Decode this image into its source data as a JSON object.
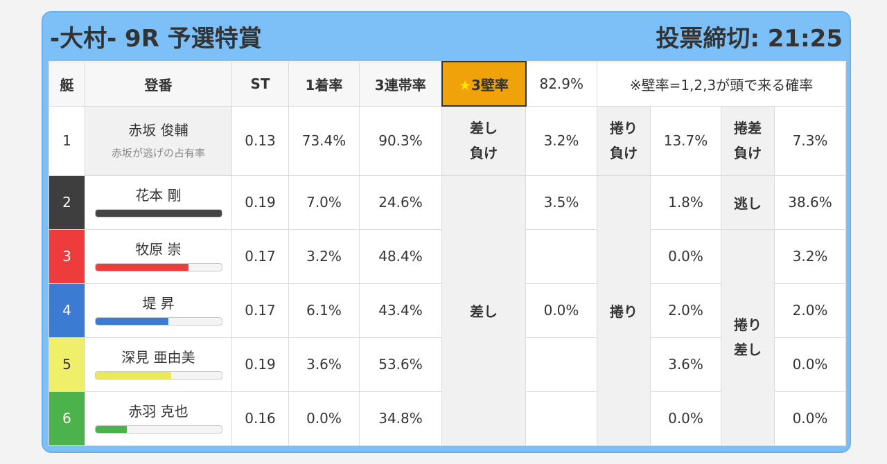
{
  "header": {
    "title": "-大村- 9R 予選特賞",
    "deadline": "投票締切: 21:25"
  },
  "columns": {
    "boat": "艇",
    "name": "登番",
    "st": "ST",
    "first_rate": "1着率",
    "top3_rate": "3連帯率",
    "star": "★",
    "kabe_label": "3壁率",
    "kabe_value": "82.9%",
    "note": "※壁率=1,2,3が頭で来る確率"
  },
  "colors": {
    "boat1": "#ffffff",
    "boat2": "#3e3e3e",
    "boat3": "#ee3b3b",
    "boat4": "#3b7bd1",
    "boat5": "#f0ef6a",
    "boat6": "#4cb24c",
    "kabe_highlight": "#f0a20a"
  },
  "rows": [
    {
      "boat": "1",
      "name": "赤坂 俊輔",
      "sub": "赤坂が逃げの占有率",
      "st": "0.13",
      "first": "73.4%",
      "top3": "90.3%"
    },
    {
      "boat": "2",
      "name": "花本 剛",
      "st": "0.19",
      "first": "7.0%",
      "top3": "24.6%",
      "bar": 1.0,
      "bar_color": "#444444"
    },
    {
      "boat": "3",
      "name": "牧原 崇",
      "st": "0.17",
      "first": "3.2%",
      "top3": "48.4%",
      "bar": 0.74,
      "bar_color": "#ee3b3b"
    },
    {
      "boat": "4",
      "name": "堤 昇",
      "st": "0.17",
      "first": "6.1%",
      "top3": "43.4%",
      "bar": 0.58,
      "bar_color": "#3b7bd1"
    },
    {
      "boat": "5",
      "name": "深見 亜由美",
      "st": "0.19",
      "first": "3.6%",
      "top3": "53.6%",
      "bar": 0.6,
      "bar_color": "#eaea55"
    },
    {
      "boat": "6",
      "name": "赤羽 克也",
      "st": "0.16",
      "first": "0.0%",
      "top3": "34.8%",
      "bar": 0.25,
      "bar_color": "#4cb24c"
    }
  ],
  "boat1_outcomes": {
    "sashi_make_l1": "差し",
    "sashi_make_l2": "負け",
    "sashi_make_val": "3.2%",
    "makuri_make_l1": "捲り",
    "makuri_make_l2": "負け",
    "makuri_make_val": "13.7%",
    "makurizashi_make_l1": "捲差",
    "makurizashi_make_l2": "負け",
    "makurizashi_make_val": "7.3%"
  },
  "sashi": {
    "label": "差し",
    "values": [
      "3.5%",
      "",
      "0.0%",
      "",
      ""
    ]
  },
  "makuri": {
    "label": "捲り",
    "values": [
      "1.8%",
      "0.0%",
      "2.0%",
      "3.6%",
      "0.0%"
    ]
  },
  "nige": {
    "label": "逃し",
    "value": "38.6%"
  },
  "makurizashi": {
    "label_l1": "捲り",
    "label_l2": "差し",
    "values": [
      "3.2%",
      "2.0%",
      "0.0%",
      "0.0%"
    ]
  }
}
